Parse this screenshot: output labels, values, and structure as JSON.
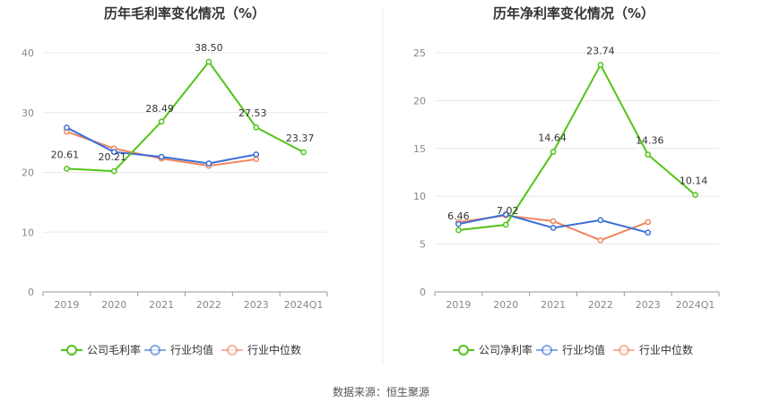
{
  "source": "数据来源：恒生聚源",
  "chart_data": [
    {
      "type": "line",
      "title": "历年毛利率变化情况（%）",
      "categories": [
        "2019",
        "2020",
        "2021",
        "2022",
        "2023",
        "2024Q1"
      ],
      "ylim": [
        0,
        40
      ],
      "yticks": [
        0,
        10,
        20,
        30,
        40
      ],
      "xlabel": "",
      "ylabel": "",
      "grid": true,
      "legend_position": "bottom",
      "series": [
        {
          "name": "公司毛利率",
          "color": "#52c41a",
          "labeled": true,
          "values": [
            20.61,
            20.21,
            28.49,
            38.5,
            27.53,
            23.37
          ],
          "labels": [
            "20.61",
            "20.21",
            "28.49",
            "38.50",
            "27.53",
            "23.37"
          ]
        },
        {
          "name": "行业均值",
          "color": "#3b6fd6",
          "labeled": false,
          "values": [
            27.5,
            23.4,
            22.6,
            21.5,
            23.0,
            null
          ]
        },
        {
          "name": "行业中位数",
          "color": "#f0855e",
          "labeled": false,
          "values": [
            26.8,
            24.0,
            22.3,
            21.1,
            22.2,
            null
          ]
        }
      ]
    },
    {
      "type": "line",
      "title": "历年净利率变化情况（%）",
      "categories": [
        "2019",
        "2020",
        "2021",
        "2022",
        "2023",
        "2024Q1"
      ],
      "ylim": [
        0,
        25
      ],
      "yticks": [
        0,
        5,
        10,
        15,
        20,
        25
      ],
      "xlabel": "",
      "ylabel": "",
      "grid": true,
      "legend_position": "bottom",
      "series": [
        {
          "name": "公司净利率",
          "color": "#52c41a",
          "labeled": true,
          "values": [
            6.46,
            7.02,
            14.64,
            23.74,
            14.36,
            10.14
          ],
          "labels": [
            "6.46",
            "7.02",
            "14.64",
            "23.74",
            "14.36",
            "10.14"
          ]
        },
        {
          "name": "行业均值",
          "color": "#3b6fd6",
          "labeled": false,
          "values": [
            7.1,
            8.1,
            6.7,
            7.5,
            6.2,
            null
          ]
        },
        {
          "name": "行业中位数",
          "color": "#f0855e",
          "labeled": false,
          "values": [
            7.3,
            8.0,
            7.4,
            5.4,
            7.3,
            null
          ]
        }
      ]
    }
  ]
}
